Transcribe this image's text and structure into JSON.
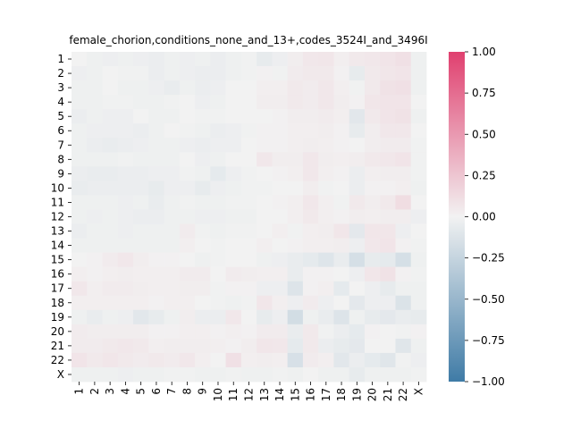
{
  "chart_data": {
    "type": "heatmap",
    "title": "female_chorion,conditions_none_and_13+,codes_3524I_and_3496I",
    "xlabel": "",
    "ylabel": "",
    "categories": [
      "1",
      "2",
      "3",
      "4",
      "5",
      "6",
      "7",
      "8",
      "9",
      "10",
      "11",
      "12",
      "13",
      "14",
      "15",
      "16",
      "17",
      "18",
      "19",
      "20",
      "21",
      "22",
      "X"
    ],
    "colorbar": {
      "min": -1.0,
      "max": 1.0,
      "ticks": [
        "1.00",
        "0.75",
        "0.50",
        "0.25",
        "0.00",
        "−0.25",
        "−0.50",
        "−0.75",
        "−1.00"
      ],
      "tick_values": [
        1.0,
        0.75,
        0.5,
        0.25,
        0.0,
        -0.25,
        -0.5,
        -0.75,
        -1.0
      ],
      "colors": {
        "negative": "#3f7ba6",
        "zero": "#f2f2f2",
        "positive": "#e0406f"
      }
    },
    "values": [
      [
        0.0,
        -0.02,
        -0.03,
        -0.02,
        -0.03,
        -0.04,
        -0.02,
        -0.03,
        -0.02,
        -0.04,
        -0.02,
        -0.01,
        -0.06,
        -0.03,
        0.03,
        0.06,
        0.07,
        0.02,
        0.05,
        0.06,
        0.08,
        0.1,
        -0.02
      ],
      [
        -0.03,
        -0.02,
        0.0,
        -0.01,
        -0.01,
        -0.04,
        -0.02,
        -0.03,
        -0.04,
        -0.04,
        -0.02,
        -0.01,
        0.01,
        -0.01,
        0.04,
        0.05,
        0.05,
        0.01,
        -0.06,
        0.05,
        0.07,
        0.08,
        -0.02
      ],
      [
        -0.02,
        -0.02,
        0.0,
        -0.02,
        -0.02,
        -0.03,
        -0.05,
        -0.02,
        -0.04,
        -0.03,
        0.0,
        0.0,
        0.02,
        0.02,
        0.05,
        0.04,
        0.06,
        0.02,
        -0.01,
        0.05,
        0.09,
        0.1,
        -0.02
      ],
      [
        -0.02,
        -0.02,
        -0.01,
        -0.01,
        -0.02,
        -0.02,
        -0.01,
        0.0,
        -0.03,
        -0.02,
        0.0,
        0.0,
        0.03,
        0.03,
        0.05,
        0.04,
        0.06,
        0.03,
        0.01,
        0.07,
        0.08,
        0.08,
        0.0
      ],
      [
        -0.04,
        -0.02,
        -0.03,
        -0.03,
        0.0,
        -0.02,
        -0.02,
        0.0,
        -0.01,
        -0.01,
        0.0,
        0.0,
        0.0,
        0.01,
        0.03,
        0.03,
        0.04,
        0.02,
        -0.09,
        0.05,
        0.08,
        0.09,
        -0.02
      ],
      [
        -0.02,
        -0.03,
        -0.03,
        -0.03,
        -0.04,
        -0.02,
        0.0,
        -0.01,
        -0.02,
        -0.04,
        -0.03,
        -0.01,
        0.01,
        0.01,
        0.02,
        0.02,
        0.03,
        0.01,
        -0.06,
        0.03,
        0.06,
        0.06,
        0.0
      ],
      [
        -0.02,
        -0.04,
        -0.05,
        -0.04,
        -0.03,
        -0.02,
        -0.02,
        -0.03,
        -0.04,
        -0.03,
        -0.03,
        0.0,
        0.01,
        0.01,
        0.02,
        0.03,
        0.02,
        0.01,
        0.0,
        0.03,
        0.04,
        0.04,
        -0.01
      ],
      [
        -0.02,
        -0.02,
        -0.02,
        -0.01,
        -0.02,
        -0.02,
        -0.02,
        0.0,
        -0.03,
        -0.02,
        0.0,
        0.0,
        0.06,
        0.03,
        0.03,
        0.06,
        0.03,
        0.02,
        0.03,
        0.05,
        0.06,
        0.08,
        -0.01
      ],
      [
        -0.04,
        -0.05,
        -0.05,
        -0.04,
        -0.04,
        -0.03,
        -0.03,
        -0.01,
        -0.02,
        -0.07,
        -0.03,
        -0.01,
        0.0,
        0.01,
        0.02,
        0.06,
        0.02,
        0.01,
        -0.04,
        0.02,
        0.03,
        0.03,
        -0.01
      ],
      [
        -0.05,
        -0.04,
        -0.04,
        -0.04,
        -0.04,
        -0.06,
        -0.03,
        -0.03,
        -0.06,
        -0.03,
        -0.02,
        -0.01,
        -0.01,
        0.0,
        0.0,
        0.03,
        -0.01,
        0.0,
        -0.04,
        0.01,
        0.01,
        0.02,
        -0.02
      ],
      [
        -0.02,
        -0.02,
        -0.02,
        -0.03,
        -0.02,
        -0.05,
        -0.02,
        -0.01,
        -0.02,
        -0.02,
        -0.01,
        -0.01,
        0.0,
        0.01,
        0.02,
        0.06,
        0.02,
        -0.01,
        0.05,
        0.03,
        0.05,
        0.12,
        0.0
      ],
      [
        -0.02,
        -0.03,
        -0.02,
        -0.03,
        -0.04,
        -0.04,
        -0.02,
        -0.02,
        -0.03,
        -0.03,
        -0.02,
        -0.02,
        0.0,
        0.0,
        0.02,
        0.05,
        0.02,
        0.01,
        0.03,
        0.02,
        0.03,
        0.03,
        -0.03
      ],
      [
        -0.04,
        -0.02,
        -0.02,
        -0.03,
        -0.02,
        -0.02,
        -0.02,
        0.04,
        -0.01,
        -0.02,
        -0.01,
        -0.01,
        0.0,
        0.02,
        -0.01,
        0.02,
        0.03,
        0.07,
        -0.08,
        0.07,
        0.07,
        -0.03,
        0.0
      ],
      [
        -0.02,
        -0.02,
        -0.02,
        -0.02,
        -0.02,
        -0.02,
        -0.02,
        0.02,
        0.0,
        -0.01,
        0.0,
        0.0,
        0.02,
        0.0,
        0.01,
        0.02,
        0.02,
        0.03,
        -0.03,
        0.06,
        0.08,
        0.01,
        -0.01
      ],
      [
        0.0,
        0.01,
        0.04,
        0.06,
        0.03,
        0.01,
        0.01,
        0.0,
        -0.02,
        -0.01,
        0.0,
        0.0,
        -0.02,
        -0.03,
        -0.05,
        -0.07,
        -0.11,
        -0.05,
        -0.16,
        -0.06,
        -0.07,
        -0.16,
        -0.02
      ],
      [
        0.02,
        0.01,
        0.02,
        0.03,
        0.02,
        0.02,
        0.02,
        0.04,
        0.04,
        0.0,
        0.04,
        0.03,
        0.02,
        0.02,
        -0.05,
        0.01,
        0.01,
        0.0,
        -0.03,
        0.07,
        0.09,
        0.01,
        -0.01
      ],
      [
        0.06,
        0.02,
        0.04,
        0.04,
        0.03,
        0.02,
        0.02,
        0.03,
        0.03,
        -0.01,
        0.01,
        0.01,
        -0.03,
        -0.03,
        -0.12,
        0.01,
        0.02,
        -0.07,
        0.0,
        -0.03,
        -0.06,
        -0.02,
        -0.02
      ],
      [
        0.02,
        0.02,
        0.02,
        0.02,
        0.02,
        0.01,
        0.02,
        0.02,
        0.0,
        -0.01,
        -0.02,
        -0.01,
        0.07,
        0.02,
        -0.03,
        0.04,
        -0.03,
        0.0,
        -0.08,
        -0.03,
        -0.03,
        -0.13,
        -0.02
      ],
      [
        -0.02,
        -0.05,
        -0.02,
        -0.03,
        -0.09,
        -0.06,
        -0.02,
        0.03,
        -0.04,
        -0.04,
        0.06,
        0.0,
        -0.06,
        -0.03,
        -0.18,
        -0.02,
        -0.05,
        -0.12,
        -0.02,
        -0.06,
        -0.08,
        -0.05,
        -0.06
      ],
      [
        0.04,
        0.03,
        0.03,
        0.03,
        0.03,
        0.01,
        0.01,
        0.02,
        0.02,
        0.01,
        0.02,
        0.01,
        0.04,
        0.04,
        -0.05,
        0.05,
        -0.01,
        -0.04,
        -0.07,
        0.01,
        0.0,
        -0.01,
        0.01
      ],
      [
        0.04,
        0.04,
        0.05,
        0.06,
        0.05,
        0.02,
        0.03,
        0.03,
        0.03,
        0.02,
        0.01,
        0.03,
        0.07,
        0.06,
        -0.07,
        0.05,
        -0.04,
        -0.06,
        -0.08,
        0.0,
        0.0,
        -0.1,
        -0.02
      ],
      [
        0.08,
        0.05,
        0.07,
        0.05,
        0.04,
        0.05,
        0.04,
        0.06,
        0.02,
        0.0,
        0.1,
        0.02,
        0.03,
        0.02,
        -0.15,
        0.04,
        0.02,
        -0.09,
        -0.04,
        -0.07,
        -0.1,
        -0.01,
        -0.03
      ],
      [
        -0.02,
        -0.02,
        -0.02,
        -0.03,
        -0.02,
        -0.02,
        -0.01,
        -0.01,
        -0.02,
        -0.02,
        -0.01,
        -0.02,
        -0.02,
        -0.01,
        -0.02,
        0.0,
        -0.02,
        -0.02,
        -0.06,
        -0.02,
        -0.02,
        -0.02,
        -0.01
      ]
    ]
  }
}
